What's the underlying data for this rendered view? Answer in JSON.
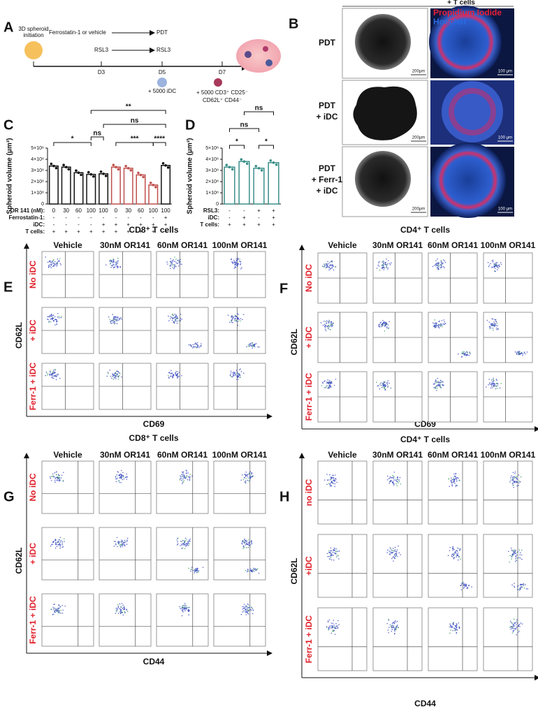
{
  "panels": {
    "A": {
      "label": "A",
      "start": [
        "3D spheroid",
        "initiation"
      ],
      "treatment1": "Ferrostatin-1 or vehicle",
      "result1": "PDT",
      "treatment2": "RSL3",
      "result2": "RSL3",
      "days": [
        "D3",
        "D5",
        "D7"
      ],
      "idc": "+ 5000 iDC",
      "tcells": [
        "+ 5000 CD3⁺ CD25⁻",
        "CD62L⁺ CD44⁻"
      ]
    },
    "B": {
      "label": "B",
      "header": "+ T cells",
      "rows": [
        [
          "PDT"
        ],
        [
          "PDT",
          "+ iDC"
        ],
        [
          "PDT",
          "+ Ferr-1",
          "+ iDC"
        ]
      ],
      "stains": [
        "Propidium Iodide",
        "Hoechst"
      ],
      "scale_bf": "200μm",
      "scale_fl": "100 μm"
    }
  },
  "chart_data": [
    {
      "type": "bar",
      "label": "C",
      "ylabel": "Spheroid volume (μm³)",
      "values": [
        340000000,
        330000000,
        280000000,
        265000000,
        270000000,
        330000000,
        320000000,
        260000000,
        170000000,
        345000000
      ],
      "colors": [
        "#111111",
        "#111111",
        "#111111",
        "#111111",
        "#111111",
        "#c0504d",
        "#c0504d",
        "#c0504d",
        "#c0504d",
        "#111111"
      ],
      "ylim": [
        0,
        500000000
      ],
      "yticks": [
        {
          "value": 0,
          "label": "0"
        },
        {
          "value": 100000000,
          "label": "1×10⁸"
        },
        {
          "value": 200000000,
          "label": "2×10⁸"
        },
        {
          "value": 300000000,
          "label": "3×10⁸"
        },
        {
          "value": 400000000,
          "label": "4×10⁸"
        },
        {
          "value": 500000000,
          "label": "5×10⁸"
        }
      ],
      "table": [
        {
          "name": "OR 141 (nM):",
          "cells": [
            "0",
            "30",
            "60",
            "100",
            "100",
            "0",
            "30",
            "60",
            "100",
            "100"
          ]
        },
        {
          "name": "Ferrostatin-1:",
          "cells": [
            "-",
            "-",
            "-",
            "-",
            "-",
            "-",
            "-",
            "-",
            "-",
            "+"
          ]
        },
        {
          "name": "iDC:",
          "cells": [
            "-",
            "-",
            "-",
            "-",
            "+",
            "+",
            "+",
            "+",
            "+",
            "+"
          ]
        },
        {
          "name": "T cells:",
          "cells": [
            "+",
            "+",
            "+",
            "+",
            "+",
            "+",
            "+",
            "+",
            "+",
            "+"
          ]
        }
      ],
      "annotations": [
        "*",
        "ns",
        "***",
        "****",
        "**",
        "ns"
      ]
    },
    {
      "type": "bar",
      "label": "D",
      "ylabel": "Spheroid volume (μm³)",
      "values": [
        330000000,
        380000000,
        320000000,
        370000000
      ],
      "colors": [
        "#3a8f8a",
        "#3a8f8a",
        "#3a8f8a",
        "#3a8f8a"
      ],
      "ylim": [
        0,
        500000000
      ],
      "yticks": [
        {
          "value": 0,
          "label": "0"
        },
        {
          "value": 100000000,
          "label": "1×10⁸"
        },
        {
          "value": 200000000,
          "label": "2×10⁸"
        },
        {
          "value": 300000000,
          "label": "3×10⁸"
        },
        {
          "value": 400000000,
          "label": "4×10⁸"
        },
        {
          "value": 500000000,
          "label": "5×10⁸"
        }
      ],
      "table": [
        {
          "name": "RSL3:",
          "cells": [
            "-",
            "-",
            "+",
            "+"
          ]
        },
        {
          "name": "iDC:",
          "cells": [
            "-",
            "+",
            "-",
            "+"
          ]
        },
        {
          "name": "T cells:",
          "cells": [
            "+",
            "+",
            "+",
            "+"
          ]
        }
      ],
      "annotations": [
        "*",
        "*",
        "ns",
        "ns"
      ]
    }
  ],
  "flow": [
    {
      "label": "E",
      "title": "CD8⁺ T cells",
      "columns": [
        "Vehicle",
        "30nM OR141",
        "60nM OR141",
        "100nM OR141"
      ],
      "rows": [
        "No iDC",
        "+ iDC",
        "Ferr-1 + iDC"
      ],
      "ylabel": "CD62L",
      "xlabel": "CD69"
    },
    {
      "label": "F",
      "title": "CD4⁺ T cells",
      "columns": [
        "Vehicle",
        "30nM OR141",
        "60nM OR141",
        "100nM OR141"
      ],
      "rows": [
        "No iDC",
        "+ iDC",
        "Ferr-1 + iDC"
      ],
      "ylabel": "CD62L",
      "xlabel": "CD69"
    },
    {
      "label": "G",
      "title": "CD8⁺ T cells",
      "columns": [
        "Vehicle",
        "30nM OR141",
        "60nM OR141",
        "100nM OR141"
      ],
      "rows": [
        "No iDC",
        "+ iDC",
        "Ferr-1 + iDC"
      ],
      "ylabel": "CD62L",
      "xlabel": "CD44"
    },
    {
      "label": "H",
      "title": "CD4⁺ T cells",
      "columns": [
        "Vehicle",
        "30nM OR141",
        "60nM OR141",
        "100nM OR141"
      ],
      "rows": [
        "no iDC",
        "+iDC",
        "Ferr-1 + iDC"
      ],
      "ylabel": "CD62L",
      "xlabel": "CD44"
    }
  ]
}
